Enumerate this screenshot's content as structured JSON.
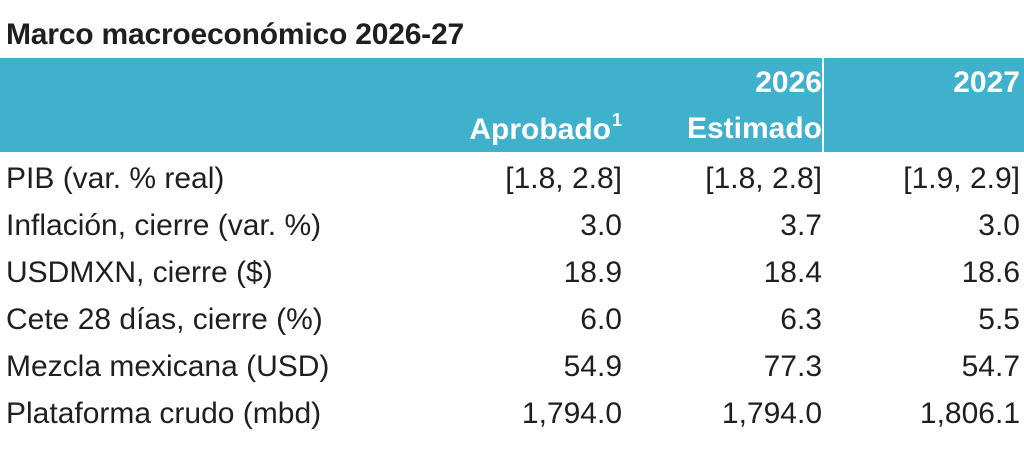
{
  "title": "Marco macroeconómico 2026-27",
  "header": {
    "year_2026": "2026",
    "year_2027": "2027",
    "aprobado_label": "Aprobado",
    "aprobado_note": "1",
    "estimado_label": "Estimado"
  },
  "rows": [
    {
      "label": "PIB (var. % real)",
      "aprobado": "[1.8, 2.8]",
      "estimado": "[1.8, 2.8]",
      "y2027": "[1.9, 2.9]"
    },
    {
      "label": "Inflación, cierre (var. %)",
      "aprobado": "3.0",
      "estimado": "3.7",
      "y2027": "3.0"
    },
    {
      "label": "USDMXN, cierre ($)",
      "aprobado": "18.9",
      "estimado": "18.4",
      "y2027": "18.6"
    },
    {
      "label": "Cete 28 días, cierre (%)",
      "aprobado": "6.0",
      "estimado": "6.3",
      "y2027": "5.5"
    },
    {
      "label": "Mezcla mexicana (USD)",
      "aprobado": "54.9",
      "estimado": "77.3",
      "y2027": "54.7"
    },
    {
      "label": "Plataforma crudo (mbd)",
      "aprobado": "1,794.0",
      "estimado": "1,794.0",
      "y2027": "1,806.1"
    }
  ],
  "colors": {
    "header_band": "#3fb1cc",
    "header_text": "#ffffff",
    "body_text": "#1f1f1f"
  }
}
